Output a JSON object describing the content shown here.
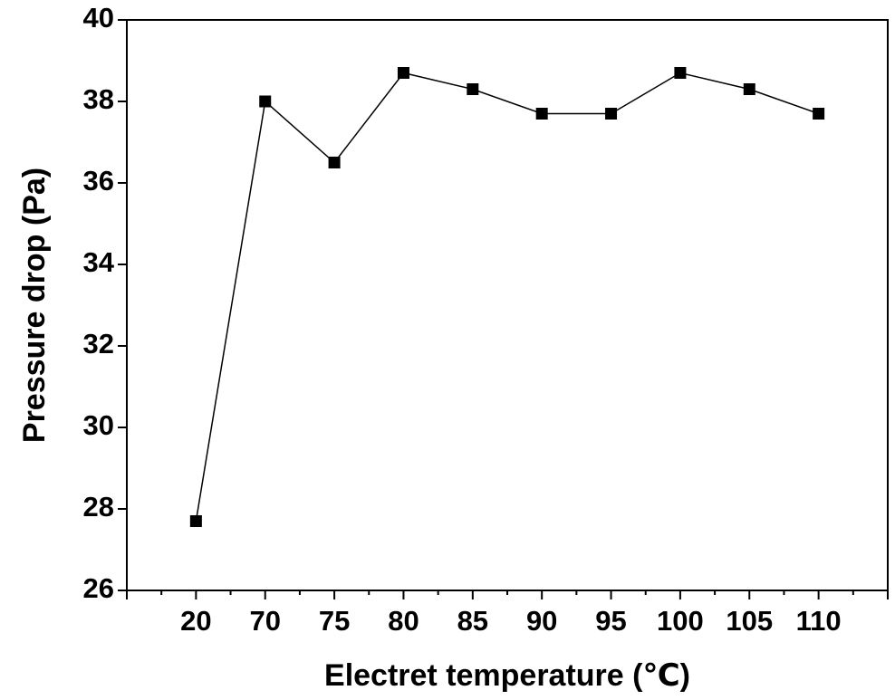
{
  "chart_data": {
    "type": "line",
    "x_label": "Electret temperature (℃)",
    "y_label": "Pressure drop (Pa)",
    "categories": [
      "20",
      "70",
      "75",
      "80",
      "85",
      "90",
      "95",
      "100",
      "105",
      "110"
    ],
    "series": [
      {
        "color": "#000000",
        "values": [
          27.7,
          38.0,
          36.5,
          38.7,
          38.3,
          37.7,
          37.7,
          38.7,
          38.3,
          37.7
        ]
      }
    ],
    "ylim": [
      26,
      40
    ],
    "yticks": [
      26,
      28,
      30,
      32,
      34,
      36,
      38,
      40
    ]
  }
}
